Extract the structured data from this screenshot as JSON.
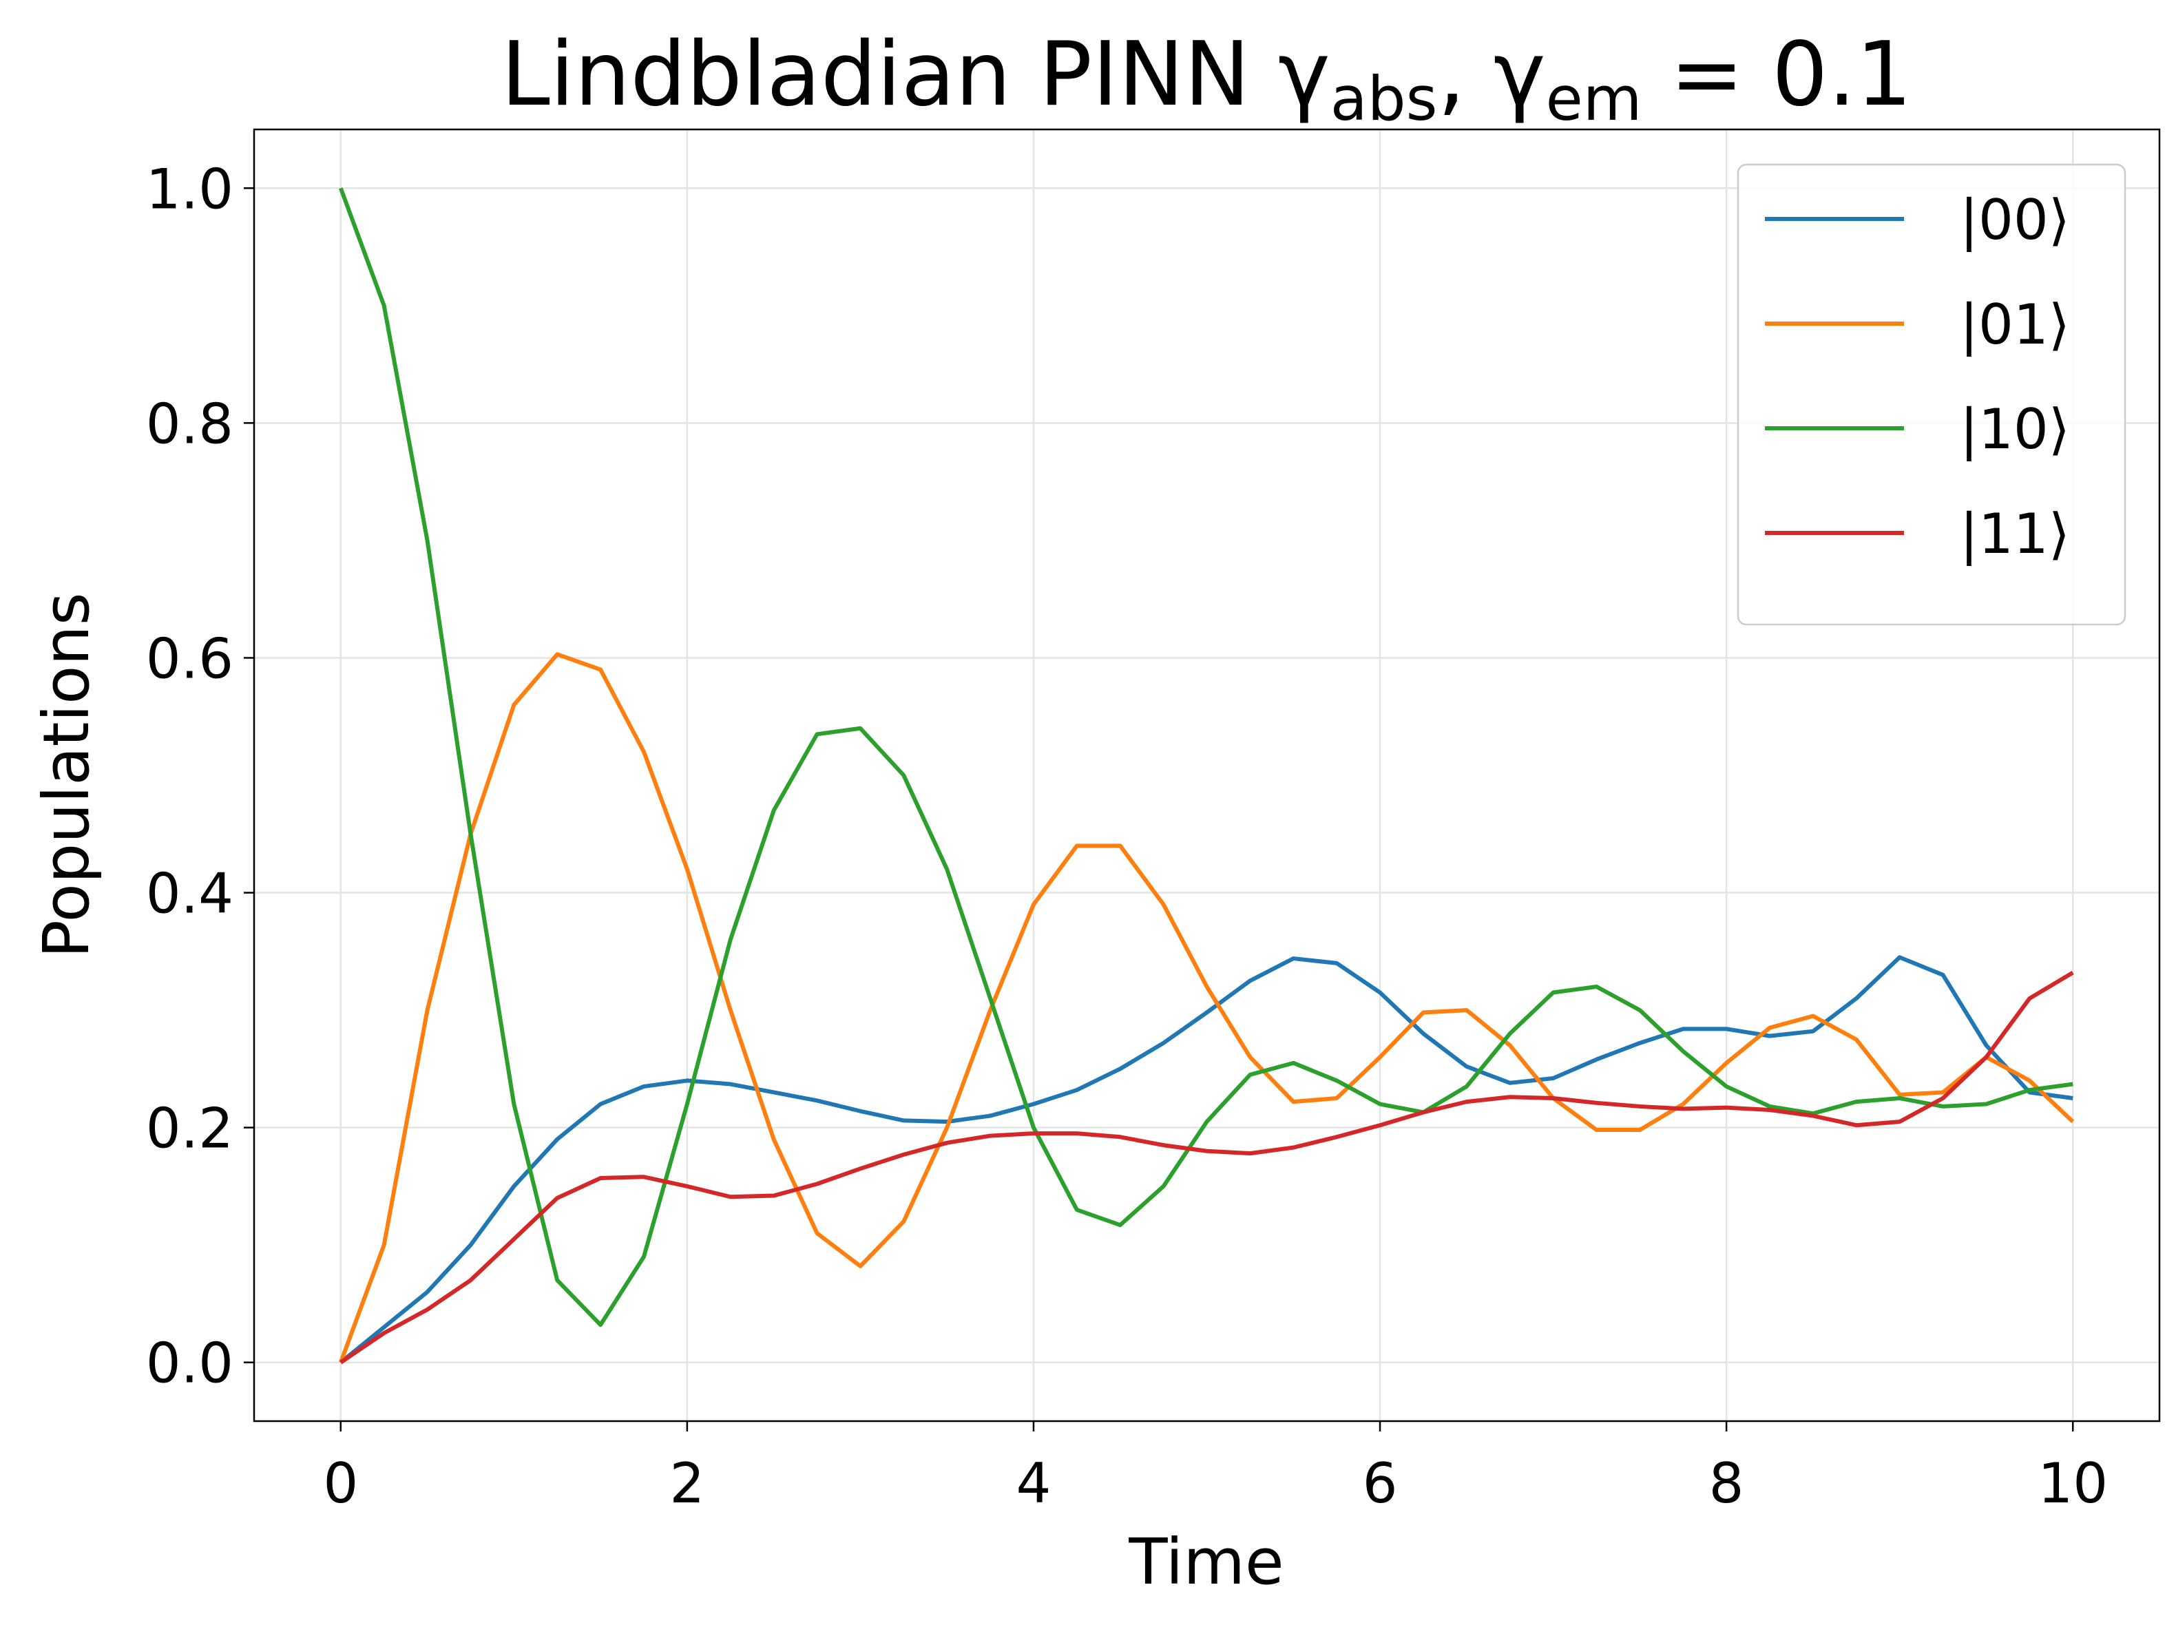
{
  "chart_data": {
    "type": "line",
    "title": [
      "Lindbladian PINN γ",
      "abs",
      ", γ",
      "em",
      " = 0.1"
    ],
    "xlabel": "Time",
    "ylabel": "Populations",
    "x": [
      0,
      0.25,
      0.5,
      0.75,
      1,
      1.25,
      1.5,
      1.75,
      2,
      2.25,
      2.5,
      2.75,
      3,
      3.25,
      3.5,
      3.75,
      4,
      4.25,
      4.5,
      4.75,
      5,
      5.25,
      5.5,
      5.75,
      6,
      6.25,
      6.5,
      6.75,
      7,
      7.25,
      7.5,
      7.75,
      8,
      8.25,
      8.5,
      8.75,
      9,
      9.25,
      9.5,
      9.75,
      10
    ],
    "series": [
      {
        "name": "|00⟩",
        "color": "#1f77b4",
        "values": [
          0,
          0.03,
          0.06,
          0.1,
          0.15,
          0.19,
          0.22,
          0.235,
          0.24,
          0.237,
          0.23,
          0.223,
          0.214,
          0.206,
          0.205,
          0.21,
          0.22,
          0.232,
          0.25,
          0.272,
          0.298,
          0.325,
          0.344,
          0.34,
          0.315,
          0.28,
          0.252,
          0.238,
          0.242,
          0.258,
          0.272,
          0.284,
          0.284,
          0.278,
          0.282,
          0.31,
          0.345,
          0.33,
          0.27,
          0.23,
          0.225
        ]
      },
      {
        "name": "|01⟩",
        "color": "#ff7f0e",
        "values": [
          0,
          0.1,
          0.3,
          0.45,
          0.56,
          0.603,
          0.59,
          0.52,
          0.42,
          0.3,
          0.19,
          0.11,
          0.082,
          0.12,
          0.2,
          0.3,
          0.39,
          0.44,
          0.44,
          0.39,
          0.32,
          0.26,
          0.222,
          0.225,
          0.26,
          0.298,
          0.3,
          0.27,
          0.225,
          0.198,
          0.198,
          0.22,
          0.255,
          0.285,
          0.295,
          0.275,
          0.228,
          0.23,
          0.26,
          0.24,
          0.205
        ]
      },
      {
        "name": "|10⟩",
        "color": "#2ca02c",
        "values": [
          1,
          0.9,
          0.7,
          0.45,
          0.22,
          0.07,
          0.032,
          0.09,
          0.22,
          0.36,
          0.47,
          0.535,
          0.54,
          0.5,
          0.42,
          0.31,
          0.2,
          0.13,
          0.117,
          0.15,
          0.205,
          0.245,
          0.255,
          0.24,
          0.22,
          0.213,
          0.235,
          0.28,
          0.315,
          0.32,
          0.3,
          0.265,
          0.235,
          0.218,
          0.212,
          0.222,
          0.225,
          0.218,
          0.22,
          0.232,
          0.237
        ]
      },
      {
        "name": "|11⟩",
        "color": "#d62728",
        "values": [
          0,
          0.025,
          0.045,
          0.07,
          0.105,
          0.14,
          0.157,
          0.158,
          0.15,
          0.141,
          0.142,
          0.152,
          0.165,
          0.177,
          0.187,
          0.193,
          0.195,
          0.195,
          0.192,
          0.185,
          0.18,
          0.178,
          0.183,
          0.192,
          0.202,
          0.213,
          0.222,
          0.226,
          0.225,
          0.221,
          0.218,
          0.216,
          0.217,
          0.215,
          0.21,
          0.202,
          0.205,
          0.225,
          0.26,
          0.31,
          0.332
        ]
      }
    ],
    "xlim": [
      -0.5,
      10.5
    ],
    "xticks": [
      0,
      2,
      4,
      6,
      8,
      10
    ],
    "ylim": [
      -0.05,
      1.05
    ],
    "yticks": [
      {
        "value": 0,
        "label": "0.0"
      },
      {
        "value": 0.2,
        "label": "0.2"
      },
      {
        "value": 0.4,
        "label": "0.4"
      },
      {
        "value": 0.6,
        "label": "0.6"
      },
      {
        "value": 0.8,
        "label": "0.8"
      },
      {
        "value": 1,
        "label": "1.0"
      }
    ],
    "grid": true,
    "legend": "upper right"
  }
}
